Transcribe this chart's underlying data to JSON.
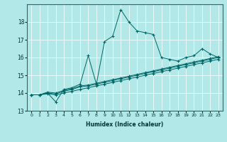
{
  "xlabel": "Humidex (Indice chaleur)",
  "bg_color": "#b3e8e8",
  "line_color": "#006666",
  "xlim": [
    -0.5,
    23.5
  ],
  "ylim": [
    13,
    19
  ],
  "yticks": [
    13,
    14,
    15,
    16,
    17,
    18
  ],
  "xticks": [
    0,
    1,
    2,
    3,
    4,
    5,
    6,
    7,
    8,
    9,
    10,
    11,
    12,
    13,
    14,
    15,
    16,
    17,
    18,
    19,
    20,
    21,
    22,
    23
  ],
  "series": [
    {
      "x": [
        0,
        1,
        2,
        3,
        4,
        5,
        6,
        7,
        8,
        9,
        10,
        11,
        12,
        13,
        14,
        15,
        16,
        17,
        18,
        19,
        20,
        21,
        22,
        23
      ],
      "y": [
        13.9,
        13.9,
        14.0,
        13.5,
        14.2,
        14.3,
        14.5,
        16.1,
        14.5,
        16.9,
        17.2,
        18.7,
        18.0,
        17.5,
        17.4,
        17.3,
        16.0,
        15.9,
        15.8,
        16.0,
        16.1,
        16.5,
        16.2,
        16.0
      ]
    },
    {
      "x": [
        0,
        1,
        2,
        3,
        4,
        5,
        6,
        7,
        8,
        9,
        10,
        11,
        12,
        13,
        14,
        15,
        16,
        17,
        18,
        19,
        20,
        21,
        22,
        23
      ],
      "y": [
        13.9,
        13.9,
        14.05,
        14.0,
        14.15,
        14.25,
        14.4,
        14.45,
        14.55,
        14.65,
        14.75,
        14.85,
        14.95,
        15.05,
        15.15,
        15.25,
        15.35,
        15.45,
        15.55,
        15.65,
        15.75,
        15.85,
        15.95,
        16.05
      ]
    },
    {
      "x": [
        0,
        1,
        2,
        3,
        4,
        5,
        6,
        7,
        8,
        9,
        10,
        11,
        12,
        13,
        14,
        15,
        16,
        17,
        18,
        19,
        20,
        21,
        22,
        23
      ],
      "y": [
        13.9,
        13.9,
        14.0,
        13.95,
        14.1,
        14.2,
        14.35,
        14.4,
        14.5,
        14.6,
        14.7,
        14.8,
        14.9,
        15.0,
        15.1,
        15.2,
        15.3,
        15.4,
        15.5,
        15.6,
        15.7,
        15.8,
        15.9,
        16.0
      ]
    },
    {
      "x": [
        0,
        1,
        2,
        3,
        4,
        5,
        6,
        7,
        8,
        9,
        10,
        11,
        12,
        13,
        14,
        15,
        16,
        17,
        18,
        19,
        20,
        21,
        22,
        23
      ],
      "y": [
        13.9,
        13.9,
        13.95,
        13.9,
        14.0,
        14.1,
        14.2,
        14.3,
        14.4,
        14.5,
        14.6,
        14.7,
        14.8,
        14.9,
        15.0,
        15.1,
        15.2,
        15.3,
        15.4,
        15.5,
        15.6,
        15.7,
        15.8,
        15.9
      ]
    }
  ]
}
